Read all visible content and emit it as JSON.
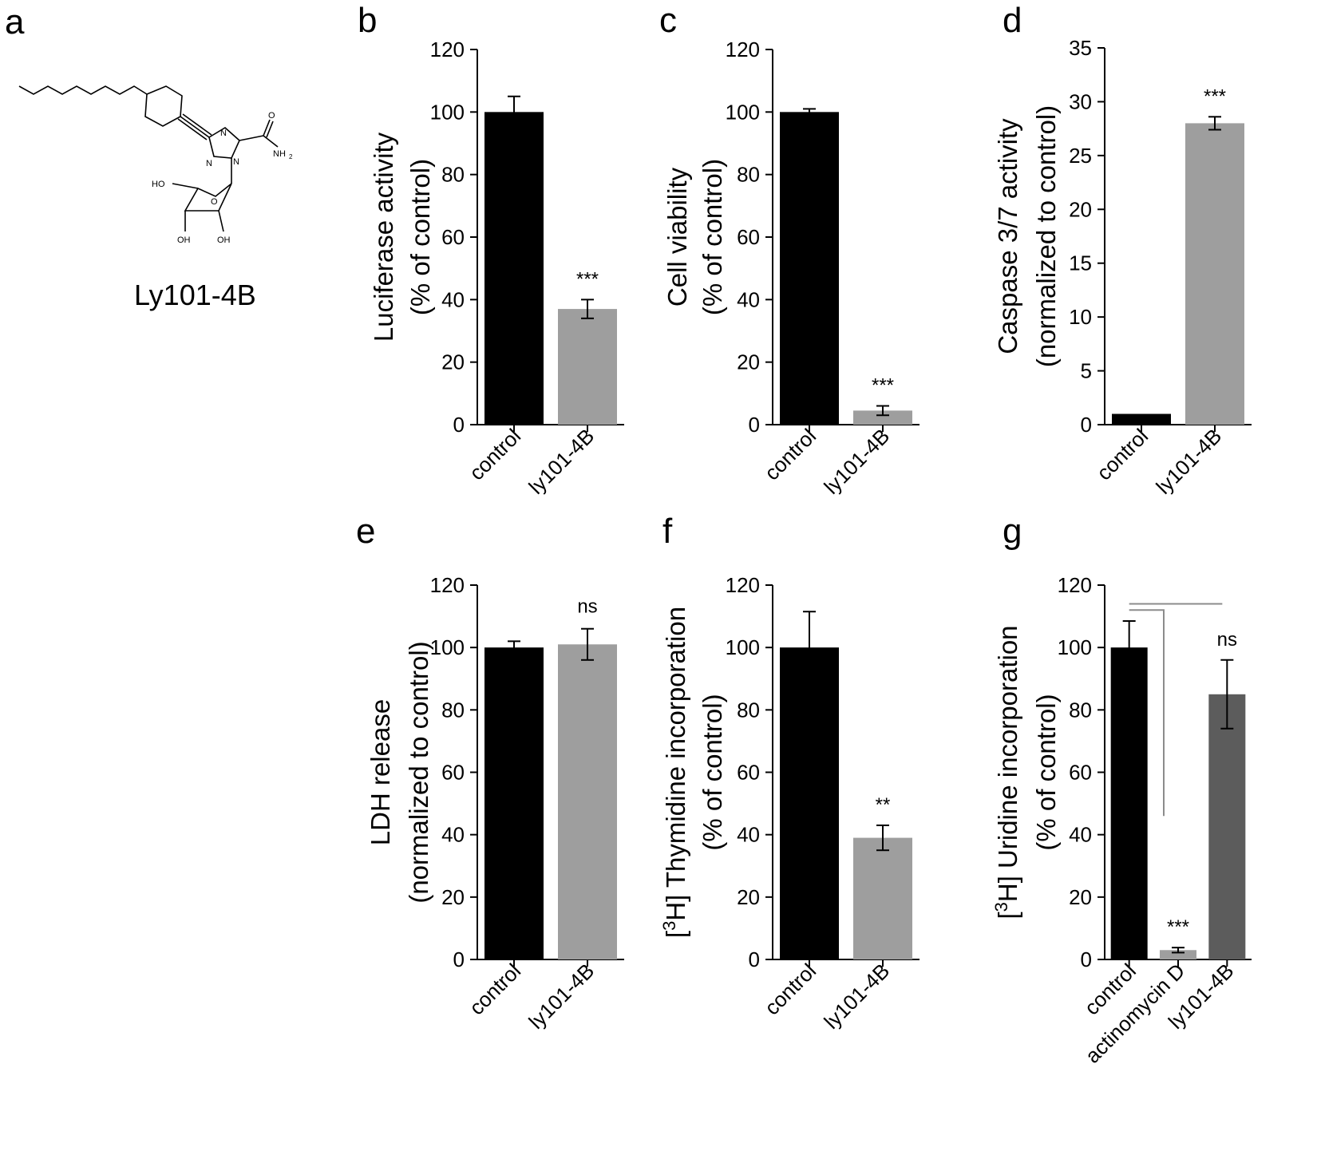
{
  "panel_a": {
    "letter": "a",
    "compound_name": "Ly101-4B",
    "atoms": {
      "ho": "HO",
      "oh1": "OH",
      "oh2": "OH",
      "o_ring": "O",
      "o_amide": "O",
      "nh2": "NH",
      "sub2": "2",
      "n1": "N",
      "n2": "N",
      "n3": "N"
    }
  },
  "colors": {
    "black": "#000000",
    "light_gray": "#9e9e9e",
    "dark_gray": "#5c5c5c",
    "line_gray": "#8c8c8c"
  },
  "chart_data": [
    {
      "id": "b",
      "letter": "b",
      "type": "bar",
      "categories": [
        "control",
        "ly101-4B"
      ],
      "values": [
        100,
        37
      ],
      "errors": [
        5,
        3
      ],
      "colors": [
        "#000000",
        "#9e9e9e"
      ],
      "ylim": [
        0,
        120
      ],
      "yticks": [
        0,
        20,
        40,
        60,
        80,
        100,
        120
      ],
      "ylabel": [
        "Luciferase activity",
        "(% of control)"
      ],
      "significance": [
        "",
        "***"
      ]
    },
    {
      "id": "c",
      "letter": "c",
      "type": "bar",
      "categories": [
        "control",
        "ly101-4B"
      ],
      "values": [
        100,
        4.5
      ],
      "errors": [
        1,
        1.5
      ],
      "colors": [
        "#000000",
        "#9e9e9e"
      ],
      "ylim": [
        0,
        120
      ],
      "yticks": [
        0,
        20,
        40,
        60,
        80,
        100,
        120
      ],
      "ylabel": [
        "Cell viability",
        "(% of control)"
      ],
      "significance": [
        "",
        "***"
      ]
    },
    {
      "id": "d",
      "letter": "d",
      "type": "bar",
      "categories": [
        "control",
        "ly101-4B"
      ],
      "values": [
        1,
        28
      ],
      "errors": [
        0,
        0.6
      ],
      "colors": [
        "#000000",
        "#9e9e9e"
      ],
      "ylim": [
        0,
        35
      ],
      "yticks": [
        0,
        5,
        10,
        15,
        20,
        25,
        30,
        35
      ],
      "ylabel": [
        "Caspase 3/7 activity",
        "(normalized to control)"
      ],
      "significance": [
        "",
        "***"
      ]
    },
    {
      "id": "e",
      "letter": "e",
      "type": "bar",
      "categories": [
        "control",
        "ly101-4B"
      ],
      "values": [
        100,
        101
      ],
      "errors": [
        2,
        5
      ],
      "colors": [
        "#000000",
        "#9e9e9e"
      ],
      "ylim": [
        0,
        120
      ],
      "yticks": [
        0,
        20,
        40,
        60,
        80,
        100,
        120
      ],
      "ylabel": [
        "LDH release",
        "(normalized to control)"
      ],
      "significance": [
        "",
        "ns"
      ]
    },
    {
      "id": "f",
      "letter": "f",
      "type": "bar",
      "categories": [
        "control",
        "ly101-4B"
      ],
      "values": [
        100,
        39
      ],
      "errors": [
        11.5,
        4
      ],
      "colors": [
        "#000000",
        "#9e9e9e"
      ],
      "ylim": [
        0,
        120
      ],
      "yticks": [
        0,
        20,
        40,
        60,
        80,
        100,
        120
      ],
      "ylabel": [
        "[3H] Thymidine incorporation",
        "(% of control)"
      ],
      "ylabel_parts": {
        "pre": "[",
        "sup": "3",
        "post": "H] Thymidine incorporation"
      },
      "significance": [
        "",
        "**"
      ]
    },
    {
      "id": "g",
      "letter": "g",
      "type": "bar",
      "categories": [
        "control",
        "actinomycin D",
        "ly101-4B"
      ],
      "values": [
        100,
        3,
        85
      ],
      "errors": [
        8.5,
        0.8,
        11
      ],
      "colors": [
        "#000000",
        "#9e9e9e",
        "#5c5c5c"
      ],
      "ylim": [
        0,
        120
      ],
      "yticks": [
        0,
        20,
        40,
        60,
        80,
        100,
        120
      ],
      "ylabel": [
        "[3H] Uridine incorporation",
        "(% of control)"
      ],
      "ylabel_parts": {
        "pre": "[",
        "sup": "3",
        "post": "H] Uridine incorporation"
      },
      "significance": [
        "",
        "***",
        "ns"
      ]
    }
  ]
}
